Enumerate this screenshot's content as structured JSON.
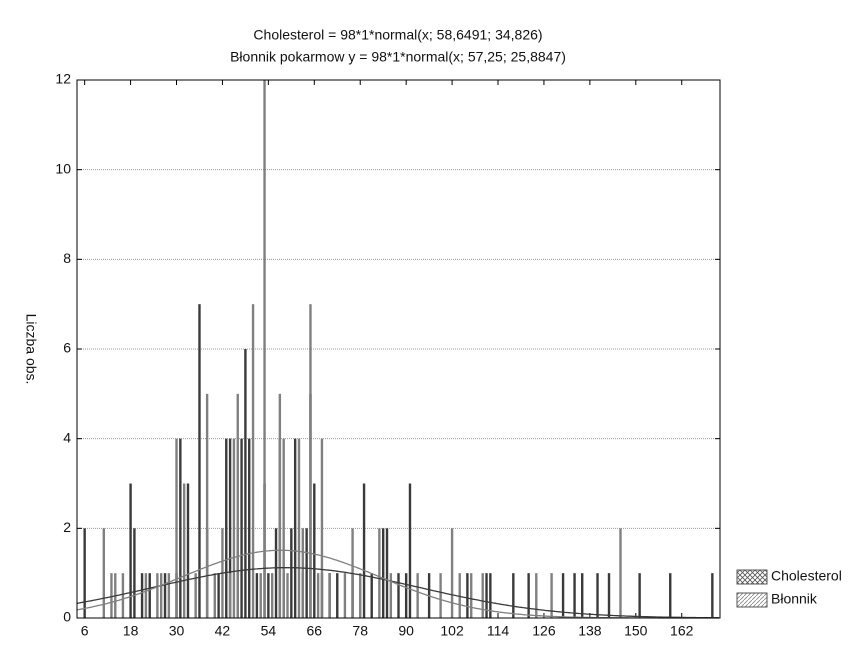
{
  "chart_data": {
    "type": "histogram",
    "title": "Cholesterol = 98*1*normal(x; 58,6491; 34,826)",
    "subtitle": "Błonnik pokarmow y = 98*1*normal(x; 57,25; 25,8847)",
    "y_label": "Liczba obs.",
    "xlim": [
      4,
      172
    ],
    "ylim": [
      0,
      12
    ],
    "xticks": [
      6,
      18,
      30,
      42,
      54,
      66,
      78,
      90,
      102,
      114,
      126,
      138,
      150,
      162
    ],
    "yticks": [
      0,
      2,
      4,
      6,
      8,
      10,
      12
    ],
    "grid": true,
    "legend": "bottom-right",
    "series": [
      {
        "name": "Cholesterol",
        "color": "#3a3a3a",
        "fit": {
          "n": 98,
          "mean": 58.6491,
          "sd": 34.826
        },
        "x": [
          6,
          18,
          19,
          21,
          23,
          27,
          30,
          31,
          33,
          36,
          38,
          41,
          43,
          44,
          46,
          47,
          48,
          49,
          51,
          53,
          54,
          56,
          57,
          58,
          60,
          61,
          63,
          64,
          65,
          66,
          68,
          70,
          72,
          76,
          79,
          81,
          84,
          85,
          88,
          90,
          91,
          96,
          106,
          111,
          112,
          118,
          122,
          131,
          134,
          136,
          140,
          143,
          151,
          159,
          170
        ],
        "values": [
          2,
          3,
          2,
          1,
          1,
          1,
          1,
          4,
          3,
          7,
          2,
          1,
          4,
          4,
          2,
          4,
          6,
          4,
          1,
          3,
          1,
          2,
          4,
          1,
          2,
          4,
          1,
          2,
          5,
          3,
          1,
          1,
          1,
          1,
          3,
          1,
          2,
          2,
          1,
          1,
          3,
          1,
          1,
          1,
          1,
          1,
          1,
          1,
          1,
          1,
          1,
          1,
          1,
          1,
          1
        ]
      },
      {
        "name": "Błonnik",
        "color": "#808080",
        "fit": {
          "n": 98,
          "mean": 57.25,
          "sd": 25.8847
        },
        "x": [
          11,
          13,
          14,
          16,
          22,
          25,
          26,
          28,
          30,
          32,
          35,
          38,
          40,
          42,
          44,
          45,
          46,
          50,
          52,
          53,
          55,
          57,
          58,
          59,
          62,
          63,
          65,
          67,
          68,
          70,
          74,
          76,
          78,
          83,
          86,
          93,
          99,
          102,
          104,
          107,
          110,
          124,
          128,
          146
        ],
        "values": [
          2,
          1,
          1,
          1,
          1,
          1,
          1,
          1,
          4,
          3,
          1,
          5,
          1,
          2,
          1,
          4,
          5,
          7,
          1,
          12,
          1,
          5,
          4,
          1,
          4,
          2,
          7,
          1,
          4,
          1,
          1,
          2,
          1,
          2,
          1,
          1,
          1,
          2,
          1,
          1,
          1,
          1,
          1,
          2
        ]
      }
    ]
  }
}
